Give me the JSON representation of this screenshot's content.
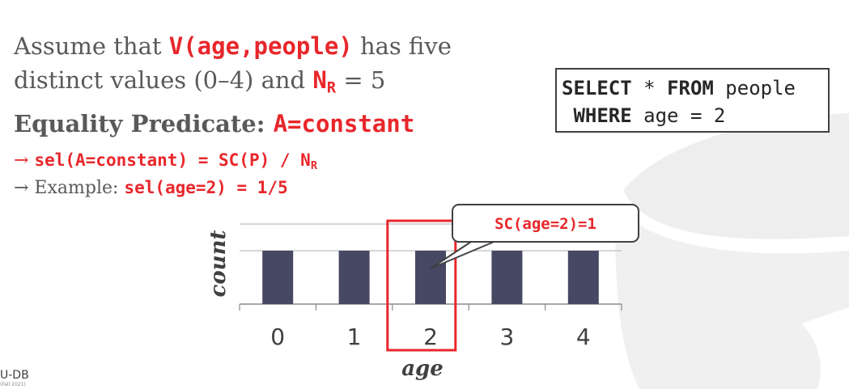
{
  "slide": {
    "line1": {
      "pre": "Assume that ",
      "code": "V(age,people)",
      "post": " has five"
    },
    "line2": {
      "pre": "distinct values (0–4) and ",
      "n": "N",
      "sub": "R",
      "post": " = 5"
    },
    "line3": {
      "label": "Equality Predicate: ",
      "code": "A=constant"
    },
    "line4": {
      "arrow": "→",
      "code": "sel(A=constant) = SC(P) / N",
      "sub": "R"
    },
    "line5": {
      "arrow": "→",
      "pre": " Example: ",
      "code": "sel(age=2) = 1/5"
    }
  },
  "sql": {
    "row1_kw1": "SELECT",
    "row1_mid": " * ",
    "row1_kw2": "FROM",
    "row1_rest": " people",
    "row2_kw": "WHERE",
    "row2_rest": " age = 2"
  },
  "callout": {
    "text": "SC(age=2)=1"
  },
  "footer": {
    "logo": "U-DB",
    "small": "(Fall 2021)"
  },
  "colors": {
    "accent": "#e8272b",
    "bar": "#464864",
    "text": "#595959"
  },
  "chart_data": {
    "type": "bar",
    "categories": [
      "0",
      "1",
      "2",
      "3",
      "4"
    ],
    "values": [
      1,
      1,
      1,
      1,
      1
    ],
    "xlabel": "age",
    "ylabel": "count",
    "highlight_category": "2",
    "grid": true
  }
}
